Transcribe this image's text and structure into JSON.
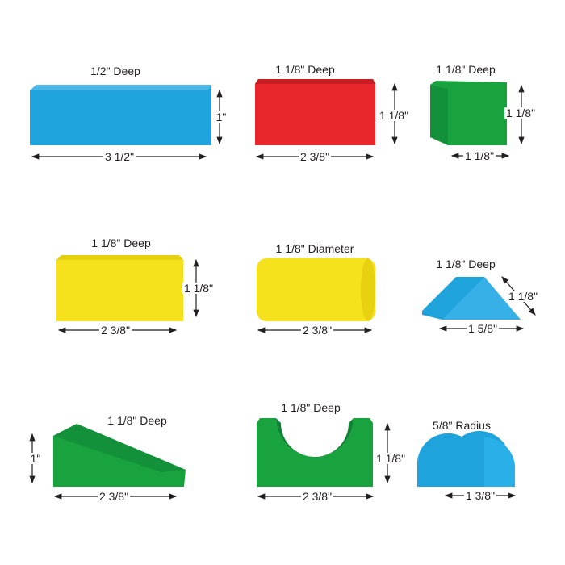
{
  "colors": {
    "blue": "#1fa3dc",
    "red": "#e8262b",
    "green": "#18a33f",
    "yellow": "#f5e21c"
  },
  "blocks": [
    {
      "name": "long-blue-board",
      "color": "blue",
      "title": "1/2\" Deep",
      "height": "1\"",
      "width": "3 1/2\""
    },
    {
      "name": "red-rectangle",
      "color": "red",
      "title": "1 1/8\" Deep",
      "height": "1 1/8\"",
      "width": "2 3/8\""
    },
    {
      "name": "green-cube",
      "color": "green",
      "title": "1 1/8\" Deep",
      "height": "1 1/8\"",
      "width": "1 1/8\""
    },
    {
      "name": "yellow-rectangle",
      "color": "yellow",
      "title": "1 1/8\" Deep",
      "height": "1 1/8\"",
      "width": "2 3/8\""
    },
    {
      "name": "yellow-cylinder",
      "color": "yellow",
      "title": "1 1/8\" Diameter",
      "width": "2 3/8\""
    },
    {
      "name": "blue-triangle",
      "color": "blue",
      "title": "1 1/8\" Deep",
      "side": "1 1/8\"",
      "width": "1 5/8\""
    },
    {
      "name": "green-ramp",
      "color": "green",
      "title": "1 1/8\" Deep",
      "height": "1\"",
      "width": "2 3/8\""
    },
    {
      "name": "green-arch",
      "color": "green",
      "title": "1 1/8\" Deep",
      "height": "1 1/8\"",
      "width": "2 3/8\""
    },
    {
      "name": "blue-half-cylinder",
      "color": "blue",
      "title": "5/8\" Radius",
      "width": "1 3/8\""
    }
  ]
}
